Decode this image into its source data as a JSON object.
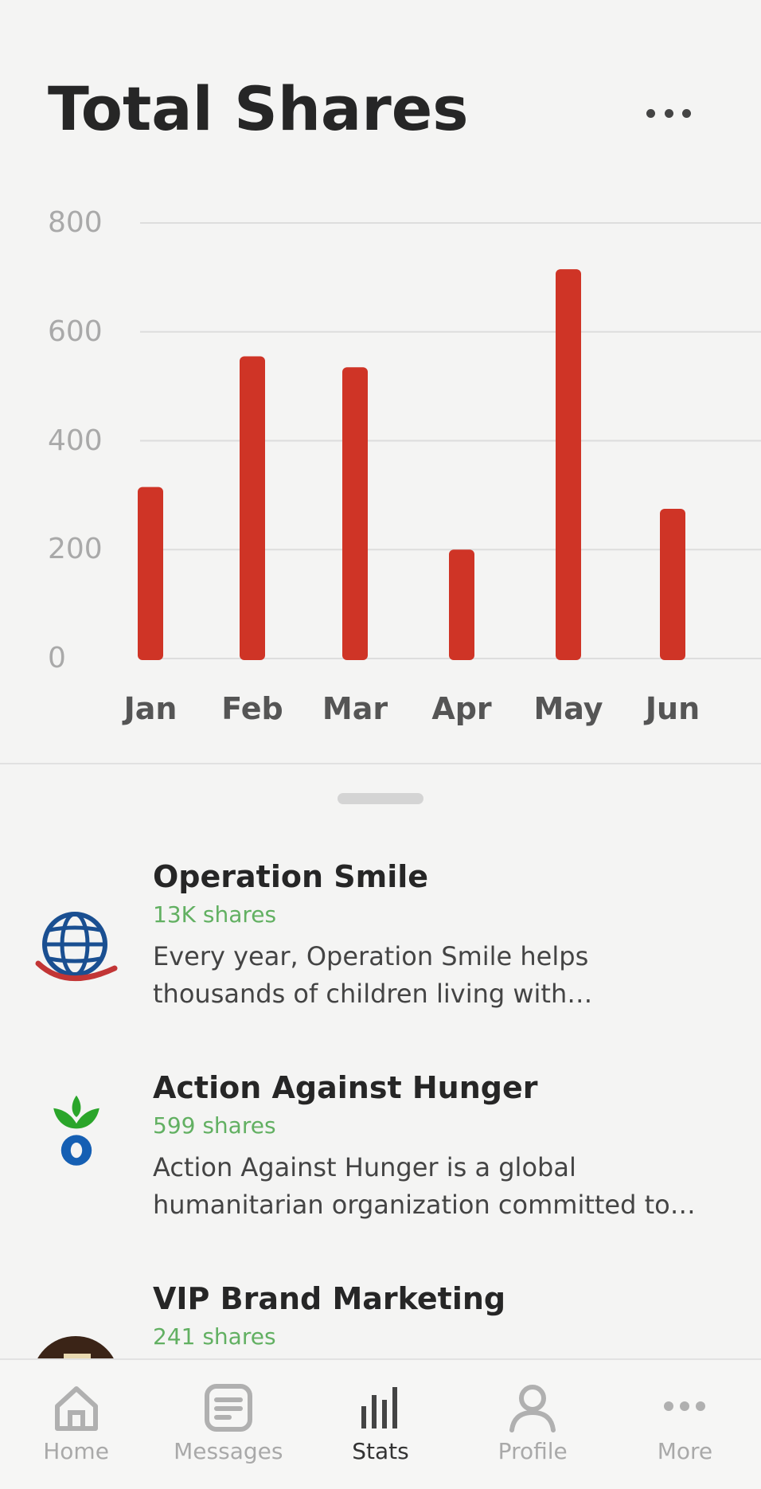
{
  "header": {
    "title": "Total Shares"
  },
  "chart_data": {
    "type": "bar",
    "categories": [
      "Jan",
      "Feb",
      "Mar",
      "Apr",
      "May",
      "Jun"
    ],
    "values": [
      315,
      555,
      535,
      200,
      715,
      275
    ],
    "title": "Total Shares",
    "xlabel": "",
    "ylabel": "",
    "ylim": [
      0,
      800
    ],
    "yticks": [
      0,
      200,
      400,
      600,
      800
    ],
    "grid": true,
    "bar_color": "#cf3426"
  },
  "list": {
    "items": [
      {
        "name": "Operation Smile",
        "shares": "13K shares",
        "desc_line1": "Every year, Operation Smile helps",
        "desc_line2": "thousands of children living with…",
        "logo": "globe-logo"
      },
      {
        "name": "Action Against Hunger",
        "shares": "599 shares",
        "desc_line1": "Action Against Hunger is a global",
        "desc_line2": "humanitarian organization committed to…",
        "logo": "leaf-drop-logo"
      },
      {
        "name": "VIP Brand Marketing",
        "shares": "241 shares",
        "desc_line1": "",
        "desc_line2": "",
        "logo": "store-photo-avatar"
      }
    ]
  },
  "tabbar": {
    "tabs": [
      {
        "label": "Home",
        "icon": "home-icon"
      },
      {
        "label": "Messages",
        "icon": "messages-icon"
      },
      {
        "label": "Stats",
        "icon": "stats-icon",
        "active": true
      },
      {
        "label": "Profile",
        "icon": "profile-icon"
      },
      {
        "label": "More",
        "icon": "more-icon"
      }
    ]
  },
  "colors": {
    "accent": "#cf3426",
    "shares_green": "#62b062"
  }
}
